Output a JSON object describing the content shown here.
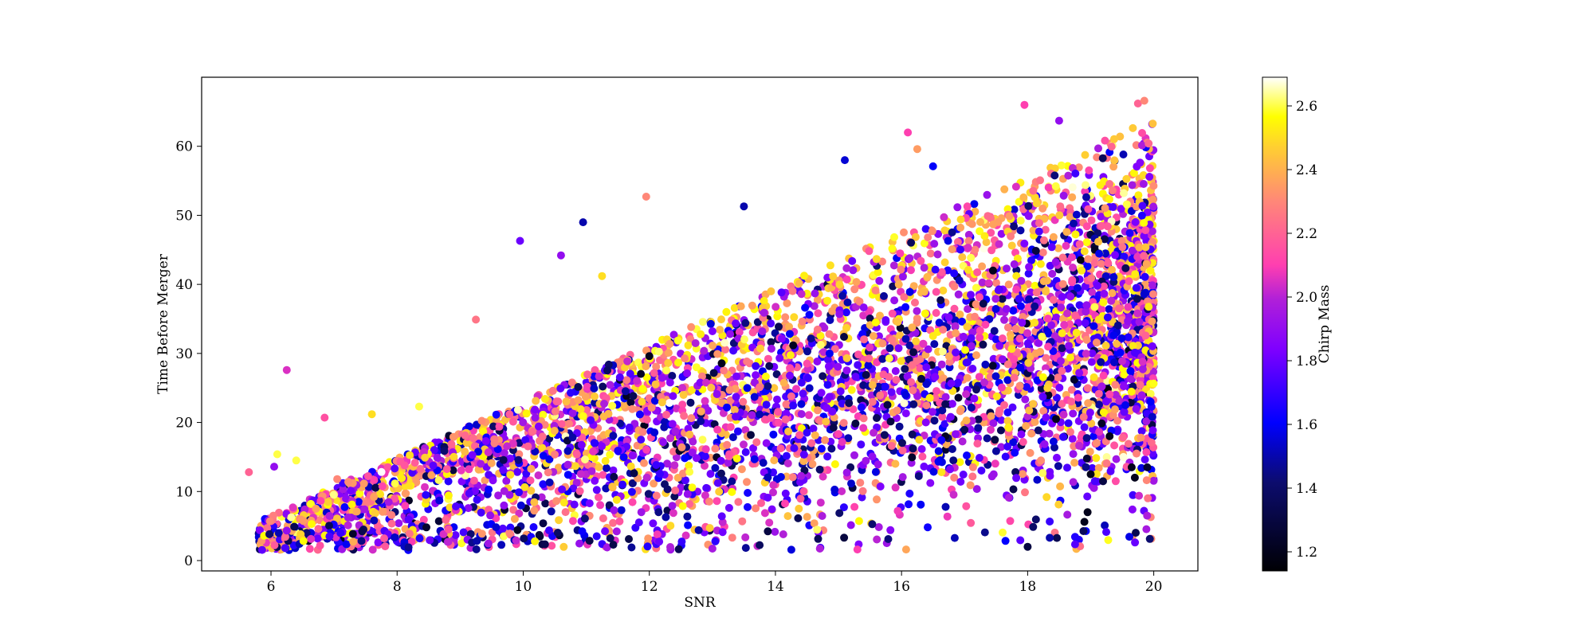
{
  "chart_data": {
    "type": "scatter",
    "title": "",
    "xlabel": "SNR",
    "ylabel": "Time Before Merger",
    "xlim": [
      4.9,
      20.7
    ],
    "ylim": [
      -1.5,
      70.0
    ],
    "xticks": [
      6,
      8,
      10,
      12,
      14,
      16,
      18,
      20
    ],
    "yticks": [
      0,
      10,
      20,
      30,
      40,
      50,
      60
    ],
    "grid": false,
    "legend": "none",
    "colorbar": {
      "label": "Chirp Mass",
      "colormap": "plasma",
      "range": [
        1.14,
        2.69
      ],
      "ticks": [
        1.2,
        1.4,
        1.6,
        1.8,
        2.0,
        2.2,
        2.4,
        2.6
      ],
      "tick_labels": [
        "1.2",
        "1.4",
        "1.6",
        "1.8",
        "2.0",
        "2.2",
        "2.4",
        "2.6"
      ]
    },
    "point_count_estimate": 5000,
    "sample_points": [
      {
        "x": 5.65,
        "y": 12.8,
        "c": 2.2
      },
      {
        "x": 6.05,
        "y": 13.6,
        "c": 1.9
      },
      {
        "x": 6.1,
        "y": 15.4,
        "c": 2.6
      },
      {
        "x": 6.25,
        "y": 27.6,
        "c": 2.05
      },
      {
        "x": 6.4,
        "y": 14.5,
        "c": 2.6
      },
      {
        "x": 6.75,
        "y": 4.6,
        "c": 2.2
      },
      {
        "x": 6.85,
        "y": 20.7,
        "c": 2.15
      },
      {
        "x": 7.05,
        "y": 11.8,
        "c": 2.3
      },
      {
        "x": 7.1,
        "y": 4.0,
        "c": 1.7
      },
      {
        "x": 7.6,
        "y": 21.2,
        "c": 2.5
      },
      {
        "x": 8.35,
        "y": 22.3,
        "c": 2.6
      },
      {
        "x": 9.25,
        "y": 34.9,
        "c": 2.25
      },
      {
        "x": 9.95,
        "y": 46.3,
        "c": 1.8
      },
      {
        "x": 10.6,
        "y": 44.2,
        "c": 1.9
      },
      {
        "x": 10.95,
        "y": 49.0,
        "c": 1.5
      },
      {
        "x": 11.25,
        "y": 41.2,
        "c": 2.5
      },
      {
        "x": 11.95,
        "y": 52.7,
        "c": 2.3
      },
      {
        "x": 12.0,
        "y": 29.6,
        "c": 1.2
      },
      {
        "x": 13.5,
        "y": 51.3,
        "c": 1.5
      },
      {
        "x": 15.1,
        "y": 58.0,
        "c": 1.55
      },
      {
        "x": 15.3,
        "y": 1.6,
        "c": 2.1
      },
      {
        "x": 16.1,
        "y": 62.0,
        "c": 2.1
      },
      {
        "x": 16.25,
        "y": 59.6,
        "c": 2.35
      },
      {
        "x": 16.5,
        "y": 57.1,
        "c": 1.6
      },
      {
        "x": 17.45,
        "y": 42.0,
        "c": 1.2
      },
      {
        "x": 17.95,
        "y": 66.0,
        "c": 2.1
      },
      {
        "x": 18.0,
        "y": 2.0,
        "c": 1.3
      },
      {
        "x": 18.35,
        "y": 3.3,
        "c": 1.5
      },
      {
        "x": 18.45,
        "y": 20.5,
        "c": 1.2
      },
      {
        "x": 18.5,
        "y": 63.7,
        "c": 1.9
      },
      {
        "x": 18.9,
        "y": 5.6,
        "c": 1.2
      },
      {
        "x": 18.95,
        "y": 7.0,
        "c": 1.2
      },
      {
        "x": 19.0,
        "y": 12.5,
        "c": 1.2
      },
      {
        "x": 19.3,
        "y": 18.0,
        "c": 1.2
      },
      {
        "x": 19.65,
        "y": 13.5,
        "c": 1.2
      },
      {
        "x": 19.7,
        "y": 12.0,
        "c": 1.2
      },
      {
        "x": 19.75,
        "y": 66.2,
        "c": 2.2
      },
      {
        "x": 19.85,
        "y": 66.6,
        "c": 2.3
      },
      {
        "x": 19.95,
        "y": 23.0,
        "c": 1.6
      }
    ]
  }
}
